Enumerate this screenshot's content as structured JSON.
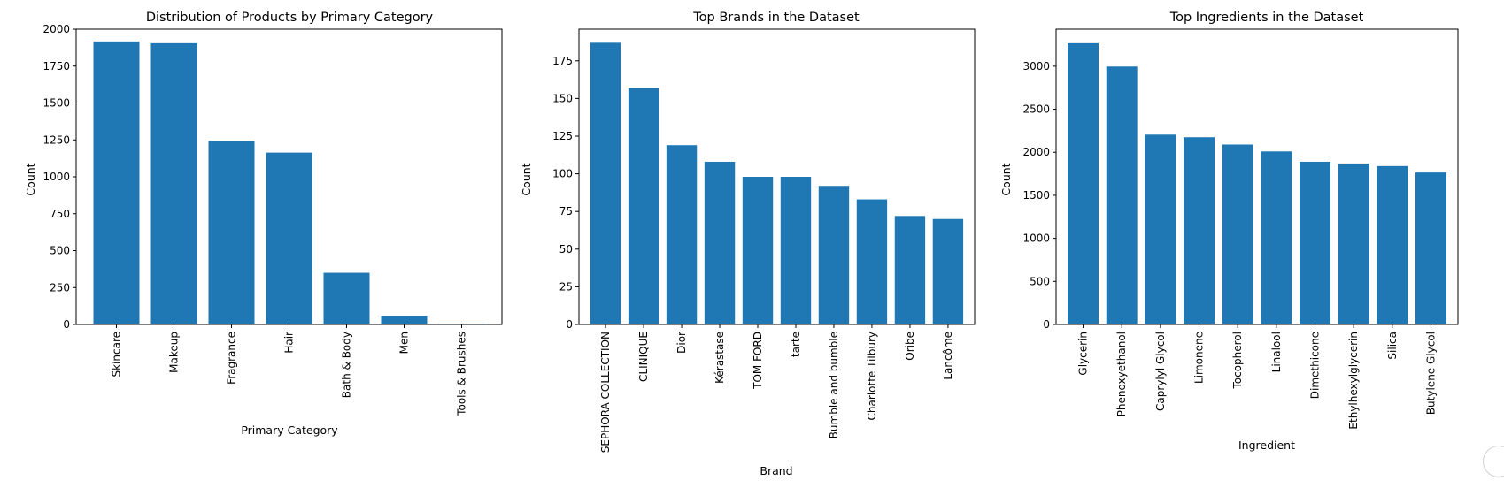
{
  "chart_data": [
    {
      "type": "bar",
      "title": "Distribution of Products by Primary Category",
      "xlabel": "Primary Category",
      "ylabel": "Count",
      "categories": [
        "Skincare",
        "Makeup",
        "Fragrance",
        "Hair",
        "Bath & Body",
        "Men",
        "Tools & Brushes"
      ],
      "values": [
        1917,
        1905,
        1243,
        1164,
        350,
        60,
        5
      ],
      "ylim": [
        0,
        2000
      ],
      "yticks": [
        0,
        250,
        500,
        750,
        1000,
        1250,
        1500,
        1750,
        2000
      ],
      "color": "#1f77b4",
      "grid": false
    },
    {
      "type": "bar",
      "title": "Top Brands in the Dataset",
      "xlabel": "Brand",
      "ylabel": "Count",
      "categories": [
        "SEPHORA COLLECTION",
        "CLINIQUE",
        "Dior",
        "Kérastase",
        "TOM FORD",
        "tarte",
        "Bumble and bumble",
        "Charlotte Tilbury",
        "Oribe",
        "Lancôme"
      ],
      "values": [
        187,
        157,
        119,
        108,
        98,
        98,
        92,
        83,
        72,
        70
      ],
      "ylim": [
        0,
        196
      ],
      "yticks": [
        0,
        25,
        50,
        75,
        100,
        125,
        150,
        175
      ],
      "color": "#1f77b4",
      "grid": false
    },
    {
      "type": "bar",
      "title": "Top Ingredients in the Dataset",
      "xlabel": "Ingredient",
      "ylabel": "Count",
      "categories": [
        "Glycerin",
        "Phenoxyethanol",
        "Caprylyl Glycol",
        "Limonene",
        "Tocopherol",
        "Linalool",
        "Dimethicone",
        "Ethylhexylglycerin",
        "Silica",
        "Butylene Glycol"
      ],
      "values": [
        3267,
        2996,
        2205,
        2175,
        2090,
        2010,
        1890,
        1870,
        1840,
        1765
      ],
      "ylim": [
        0,
        3430
      ],
      "yticks": [
        0,
        500,
        1000,
        1500,
        2000,
        2500,
        3000
      ],
      "color": "#1f77b4",
      "grid": false
    }
  ]
}
